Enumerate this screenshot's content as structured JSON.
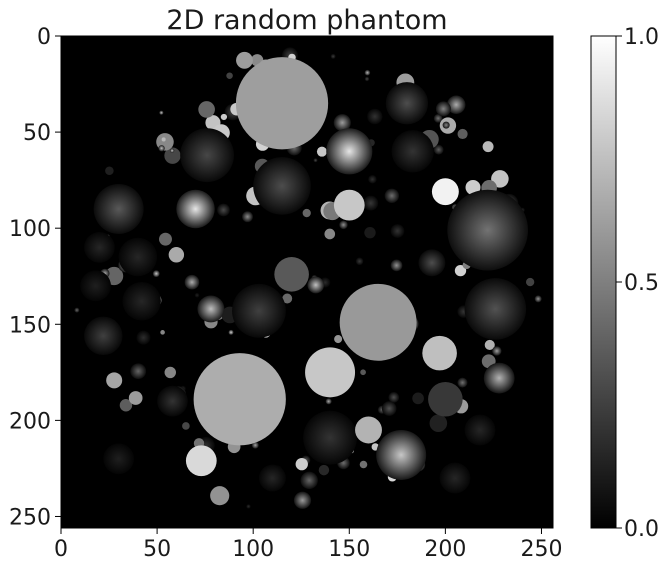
{
  "chart_data": {
    "type": "heatmap",
    "title": "2D random phantom",
    "xlabel": "",
    "ylabel": "",
    "xlim": [
      0,
      255
    ],
    "ylim": [
      255,
      0
    ],
    "x_ticks": [
      0,
      50,
      100,
      150,
      200,
      250
    ],
    "y_ticks": [
      0,
      50,
      100,
      150,
      200,
      250
    ],
    "colormap": "gray",
    "colorbar": {
      "min": 0.0,
      "max": 1.0,
      "ticks": [
        "0.0",
        "0.5",
        "1.0"
      ]
    },
    "grid": false,
    "background_value": 0.0,
    "large_circles": [
      {
        "cx": 115,
        "cy": 35,
        "r": 24,
        "value": 0.62,
        "style": "flat"
      },
      {
        "cx": 93,
        "cy": 189,
        "r": 24,
        "value": 0.68,
        "style": "flat"
      },
      {
        "cx": 165,
        "cy": 149,
        "r": 20,
        "value": 0.6,
        "style": "flat"
      },
      {
        "cx": 222,
        "cy": 101,
        "r": 21,
        "value": 0.45,
        "style": "radial"
      },
      {
        "cx": 140,
        "cy": 175,
        "r": 13,
        "value": 0.78,
        "style": "flat"
      },
      {
        "cx": 177,
        "cy": 218,
        "r": 13,
        "value": 0.78,
        "style": "radial"
      },
      {
        "cx": 140,
        "cy": 209,
        "r": 14,
        "value": 0.2,
        "style": "radial"
      },
      {
        "cx": 226,
        "cy": 142,
        "r": 16,
        "value": 0.32,
        "style": "radial"
      },
      {
        "cx": 115,
        "cy": 78,
        "r": 15,
        "value": 0.3,
        "style": "radial"
      },
      {
        "cx": 76,
        "cy": 62,
        "r": 14,
        "value": 0.28,
        "style": "radial"
      },
      {
        "cx": 30,
        "cy": 90,
        "r": 13,
        "value": 0.35,
        "style": "radial"
      },
      {
        "cx": 103,
        "cy": 143,
        "r": 14,
        "value": 0.25,
        "style": "radial"
      },
      {
        "cx": 150,
        "cy": 60,
        "r": 12,
        "value": 0.9,
        "style": "radial"
      },
      {
        "cx": 180,
        "cy": 35,
        "r": 11,
        "value": 0.3,
        "style": "radial"
      },
      {
        "cx": 70,
        "cy": 90,
        "r": 10,
        "value": 0.9,
        "style": "radial"
      },
      {
        "cx": 40,
        "cy": 115,
        "r": 10,
        "value": 0.15,
        "style": "radial"
      },
      {
        "cx": 150,
        "cy": 88,
        "r": 8,
        "value": 0.78,
        "style": "flat"
      },
      {
        "cx": 183,
        "cy": 60,
        "r": 11,
        "value": 0.2,
        "style": "radial"
      },
      {
        "cx": 120,
        "cy": 124,
        "r": 9,
        "value": 0.35,
        "style": "flat"
      },
      {
        "cx": 197,
        "cy": 165,
        "r": 9,
        "value": 0.75,
        "style": "flat"
      },
      {
        "cx": 200,
        "cy": 189,
        "r": 9,
        "value": 0.22,
        "style": "flat"
      },
      {
        "cx": 22,
        "cy": 156,
        "r": 10,
        "value": 0.25,
        "style": "radial"
      },
      {
        "cx": 42,
        "cy": 138,
        "r": 10,
        "value": 0.15,
        "style": "radial"
      },
      {
        "cx": 228,
        "cy": 178,
        "r": 8,
        "value": 0.7,
        "style": "radial"
      },
      {
        "cx": 73,
        "cy": 221,
        "r": 8,
        "value": 0.85,
        "style": "flat"
      },
      {
        "cx": 160,
        "cy": 205,
        "r": 7,
        "value": 0.7,
        "style": "flat"
      },
      {
        "cx": 78,
        "cy": 142,
        "r": 7,
        "value": 0.75,
        "style": "radial"
      },
      {
        "cx": 200,
        "cy": 81,
        "r": 7,
        "value": 0.95,
        "style": "flat"
      },
      {
        "cx": 58,
        "cy": 190,
        "r": 8,
        "value": 0.2,
        "style": "radial"
      },
      {
        "cx": 20,
        "cy": 110,
        "r": 8,
        "value": 0.15,
        "style": "radial"
      },
      {
        "cx": 18,
        "cy": 130,
        "r": 8,
        "value": 0.12,
        "style": "radial"
      },
      {
        "cx": 205,
        "cy": 230,
        "r": 8,
        "value": 0.15,
        "style": "radial"
      },
      {
        "cx": 218,
        "cy": 205,
        "r": 8,
        "value": 0.15,
        "style": "radial"
      },
      {
        "cx": 193,
        "cy": 118,
        "r": 7,
        "value": 0.3,
        "style": "radial"
      },
      {
        "cx": 30,
        "cy": 220,
        "r": 8,
        "value": 0.12,
        "style": "radial"
      },
      {
        "cx": 110,
        "cy": 230,
        "r": 7,
        "value": 0.15,
        "style": "radial"
      }
    ],
    "small_circle_seed": 7,
    "small_circle_count": 170,
    "phantom_center": [
      128,
      128
    ],
    "phantom_radius": 127
  }
}
